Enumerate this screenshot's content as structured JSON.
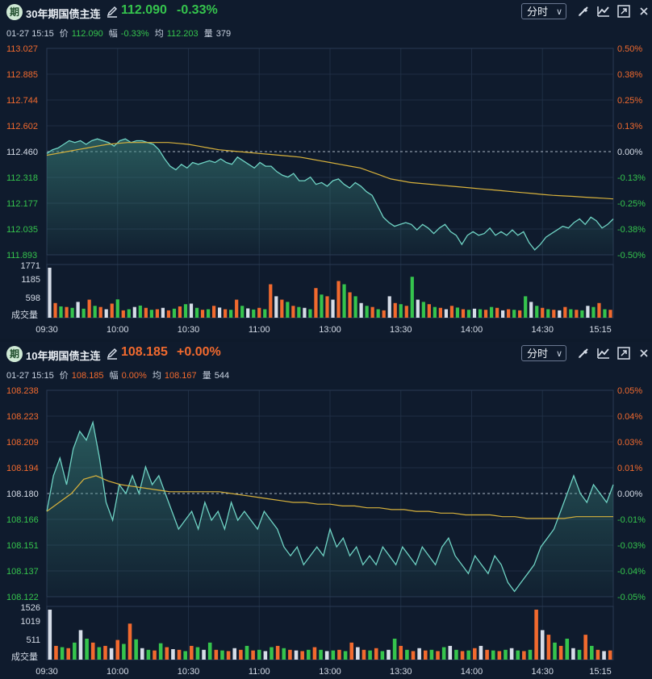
{
  "colors": {
    "up": "#f26a2e",
    "down": "#35c44d",
    "line": "#6fd3c4",
    "avg": "#d8b23c",
    "axis": "#f26a2e",
    "neutral": "#d6dde8"
  },
  "x_ticks": [
    "09:30",
    "10:00",
    "10:30",
    "11:00",
    "13:00",
    "13:30",
    "14:00",
    "14:30",
    "15:15"
  ],
  "vol_label": "成交量",
  "panels": [
    {
      "icon": "期",
      "title": "30年期国债主连",
      "last": "112.090",
      "change": "-0.33%",
      "change_dir": "down",
      "period": "分时",
      "info": {
        "date": "01-27 15:15",
        "price_label": "价",
        "price": "112.090",
        "amp_label": "幅",
        "amp": "-0.33%",
        "avg_label": "均",
        "avg": "112.203",
        "vol_label": "量",
        "vol": "379"
      },
      "y_left": [
        "113.027",
        "112.885",
        "112.744",
        "112.602",
        "112.460",
        "112.318",
        "112.177",
        "112.035",
        "111.893"
      ],
      "y_right": [
        "0.50%",
        "0.38%",
        "0.25%",
        "0.13%",
        "0.00%",
        "-0.13%",
        "-0.25%",
        "-0.38%",
        "-0.50%"
      ],
      "vol_ticks": [
        "1771",
        "1185",
        "598"
      ],
      "chart_data": {
        "type": "line",
        "ylim": [
          111.893,
          113.027
        ],
        "series": [
          {
            "values": [
              112.45,
              112.47,
              112.48,
              112.5,
              112.52,
              112.51,
              112.52,
              112.5,
              112.52,
              112.53,
              112.52,
              112.51,
              112.49,
              112.52,
              112.53,
              112.51,
              112.52,
              112.52,
              112.51,
              112.5,
              112.47,
              112.42,
              112.38,
              112.36,
              112.39,
              112.37,
              112.4,
              112.39,
              112.4,
              112.41,
              112.4,
              112.42,
              112.4,
              112.39,
              112.43,
              112.41,
              112.39,
              112.37,
              112.4,
              112.38,
              112.38,
              112.35,
              112.33,
              112.32,
              112.34,
              112.3,
              112.3,
              112.32,
              112.28,
              112.29,
              112.27,
              112.3,
              112.31,
              112.28,
              112.26,
              112.29,
              112.27,
              112.24,
              112.22,
              112.16,
              112.1,
              112.07,
              112.05,
              112.06,
              112.07,
              112.06,
              112.03,
              112.06,
              112.04,
              112.01,
              112.04,
              112.06,
              112.02,
              112.0,
              111.95,
              112.0,
              112.02,
              112.0,
              112.01,
              112.04,
              112.0,
              112.02,
              112.0,
              112.03,
              112.0,
              112.02,
              111.96,
              111.92,
              111.95,
              111.99,
              112.01,
              112.03,
              112.05,
              112.04,
              112.07,
              112.09,
              112.06,
              112.1,
              112.08,
              112.04,
              112.06,
              112.09
            ]
          },
          {
            "values": [
              112.44,
              112.45,
              112.46,
              112.47,
              112.48,
              112.49,
              112.5,
              112.505,
              112.51,
              112.51,
              112.51,
              112.51,
              112.51,
              112.505,
              112.5,
              112.49,
              112.48,
              112.47,
              112.465,
              112.46,
              112.455,
              112.45,
              112.445,
              112.44,
              112.435,
              112.43,
              112.42,
              112.41,
              112.4,
              112.39,
              112.38,
              112.37,
              112.35,
              112.33,
              112.31,
              112.3,
              112.29,
              112.285,
              112.28,
              112.275,
              112.27,
              112.265,
              112.26,
              112.255,
              112.25,
              112.245,
              112.24,
              112.235,
              112.23,
              112.225,
              112.22,
              112.217,
              112.214,
              112.21,
              112.207,
              112.204,
              112.2
            ]
          }
        ],
        "volume": [
          1771,
          520,
          400,
          380,
          350,
          560,
          320,
          640,
          420,
          380,
          300,
          500,
          650,
          260,
          300,
          380,
          430,
          350,
          280,
          300,
          350,
          260,
          320,
          400,
          480,
          500,
          350,
          280,
          300,
          420,
          360,
          300,
          280,
          640,
          420,
          330,
          290,
          350,
          300,
          1185,
          760,
          640,
          560,
          420,
          380,
          350,
          300,
          1050,
          820,
          760,
          640,
          1300,
          1185,
          900,
          760,
          520,
          420,
          380,
          300,
          260,
          760,
          520,
          480,
          420,
          1450,
          640,
          560,
          480,
          380,
          350,
          300,
          420,
          360,
          300,
          280,
          320,
          300,
          280,
          380,
          350,
          260,
          300,
          280,
          260,
          760,
          560,
          420,
          350,
          300,
          280,
          260,
          380,
          300,
          280,
          260,
          420,
          380,
          520,
          300,
          280
        ]
      }
    },
    {
      "icon": "期",
      "title": "10年期国债主连",
      "last": "108.185",
      "change": "+0.00%",
      "change_dir": "up",
      "period": "分时",
      "info": {
        "date": "01-27 15:15",
        "price_label": "价",
        "price": "108.185",
        "amp_label": "幅",
        "amp": "0.00%",
        "avg_label": "均",
        "avg": "108.167",
        "vol_label": "量",
        "vol": "544"
      },
      "y_left": [
        "108.238",
        "108.223",
        "108.209",
        "108.194",
        "108.180",
        "108.166",
        "108.151",
        "108.137",
        "108.122"
      ],
      "y_right": [
        "0.05%",
        "0.04%",
        "0.03%",
        "0.01%",
        "0.00%",
        "-0.01%",
        "-0.03%",
        "-0.04%",
        "-0.05%"
      ],
      "vol_ticks": [
        "1526",
        "1019",
        "511"
      ],
      "chart_data": {
        "type": "line",
        "ylim": [
          108.122,
          108.238
        ],
        "series": [
          {
            "values": [
              108.17,
              108.19,
              108.2,
              108.185,
              108.205,
              108.215,
              108.21,
              108.22,
              108.2,
              108.175,
              108.165,
              108.185,
              108.18,
              108.19,
              108.18,
              108.195,
              108.185,
              108.19,
              108.18,
              108.17,
              108.16,
              108.165,
              108.17,
              108.16,
              108.175,
              108.165,
              108.17,
              108.16,
              108.175,
              108.165,
              108.17,
              108.165,
              108.16,
              108.17,
              108.165,
              108.16,
              108.15,
              108.145,
              108.15,
              108.14,
              108.145,
              108.15,
              108.145,
              108.16,
              108.15,
              108.155,
              108.145,
              108.15,
              108.14,
              108.145,
              108.14,
              108.15,
              108.145,
              108.14,
              108.15,
              108.145,
              108.14,
              108.15,
              108.145,
              108.14,
              108.15,
              108.155,
              108.145,
              108.14,
              108.135,
              108.145,
              108.14,
              108.135,
              108.145,
              108.14,
              108.13,
              108.125,
              108.13,
              108.135,
              108.14,
              108.15,
              108.155,
              108.16,
              108.17,
              108.18,
              108.19,
              108.18,
              108.175,
              108.185,
              108.18,
              108.175,
              108.185
            ]
          },
          {
            "values": [
              108.17,
              108.175,
              108.18,
              108.188,
              108.19,
              108.187,
              108.185,
              108.184,
              108.183,
              108.182,
              108.181,
              108.181,
              108.181,
              108.181,
              108.181,
              108.18,
              108.179,
              108.178,
              108.177,
              108.176,
              108.175,
              108.175,
              108.174,
              108.174,
              108.173,
              108.173,
              108.172,
              108.172,
              108.171,
              108.171,
              108.17,
              108.17,
              108.169,
              108.169,
              108.168,
              108.168,
              108.168,
              108.167,
              108.167,
              108.166,
              108.166,
              108.166,
              108.166,
              108.167,
              108.167,
              108.167,
              108.167
            ]
          }
        ],
        "volume": [
          1526,
          420,
          380,
          350,
          520,
          900,
          640,
          520,
          380,
          420,
          350,
          600,
          480,
          1100,
          620,
          350,
          300,
          280,
          500,
          380,
          320,
          300,
          260,
          420,
          380,
          300,
          520,
          300,
          280,
          260,
          350,
          300,
          420,
          280,
          300,
          260,
          380,
          420,
          350,
          300,
          280,
          260,
          300,
          380,
          300,
          260,
          280,
          300,
          260,
          520,
          380,
          300,
          280,
          350,
          260,
          300,
          640,
          420,
          300,
          260,
          350,
          280,
          300,
          260,
          380,
          420,
          300,
          260,
          280,
          350,
          420,
          300,
          280,
          260,
          300,
          350,
          280,
          260,
          300,
          1526,
          900,
          760,
          520,
          420,
          640,
          350,
          300,
          760,
          420,
          300,
          260,
          280
        ]
      }
    }
  ]
}
